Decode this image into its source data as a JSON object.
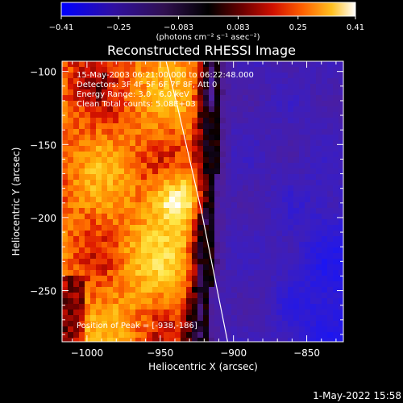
{
  "colorbar": {
    "ticks": [
      "-0.41",
      "-0.25",
      "-0.083",
      "0.083",
      "0.25",
      "0.41"
    ],
    "tick_values": [
      -0.41,
      -0.25,
      -0.083,
      0.083,
      0.25,
      0.41
    ],
    "label": "(photons cm⁻² s⁻¹ asec⁻²)"
  },
  "plot": {
    "title": "Reconstructed RHESSI Image",
    "xlabel": "Heliocentric X (arcsec)",
    "ylabel": "Heliocentric Y (arcsec)",
    "info_lines": [
      "15-May-2003 06:21:00.000 to 06:22:48.000",
      "Detectors: 3F 4F 5F 6F 7F 8F, Att 0",
      "Energy Range: 3.0 - 6.0 keV",
      "Clean     Total counts: 5.08E+03"
    ],
    "peak_label": "Position of Peak = [-938,-186]",
    "timestamp": "1-May-2022 15:58"
  },
  "chart_data": {
    "type": "heatmap",
    "title": "Reconstructed RHESSI Image",
    "xlabel": "Heliocentric X (arcsec)",
    "ylabel": "Heliocentric Y (arcsec)",
    "xlim": [
      -1017,
      -825
    ],
    "ylim": [
      -285,
      -93
    ],
    "xticks": [
      -1000,
      -950,
      -900,
      -850
    ],
    "yticks": [
      -100,
      -150,
      -200,
      -250
    ],
    "xtick_labels": [
      "−1000",
      "−950",
      "−900",
      "−850"
    ],
    "ytick_labels": [
      "−100",
      "−150",
      "−200",
      "−250"
    ],
    "zlim": [
      -0.41,
      0.41
    ],
    "peak": [
      -938,
      -186
    ],
    "colormap": [
      "#0000ff",
      "#2a0a8a",
      "#3a1a6a",
      "#000000",
      "#6a0000",
      "#c80000",
      "#ff5000",
      "#ffa000",
      "#ffe040",
      "#ffffff"
    ],
    "limb_curve": {
      "x": [
        -946,
        -938,
        -930,
        -922,
        -916,
        -910,
        -904
      ],
      "y": [
        -93,
        -125,
        -160,
        -195,
        -225,
        -255,
        -285
      ]
    },
    "grid": false,
    "legend": "colorbar-top"
  }
}
